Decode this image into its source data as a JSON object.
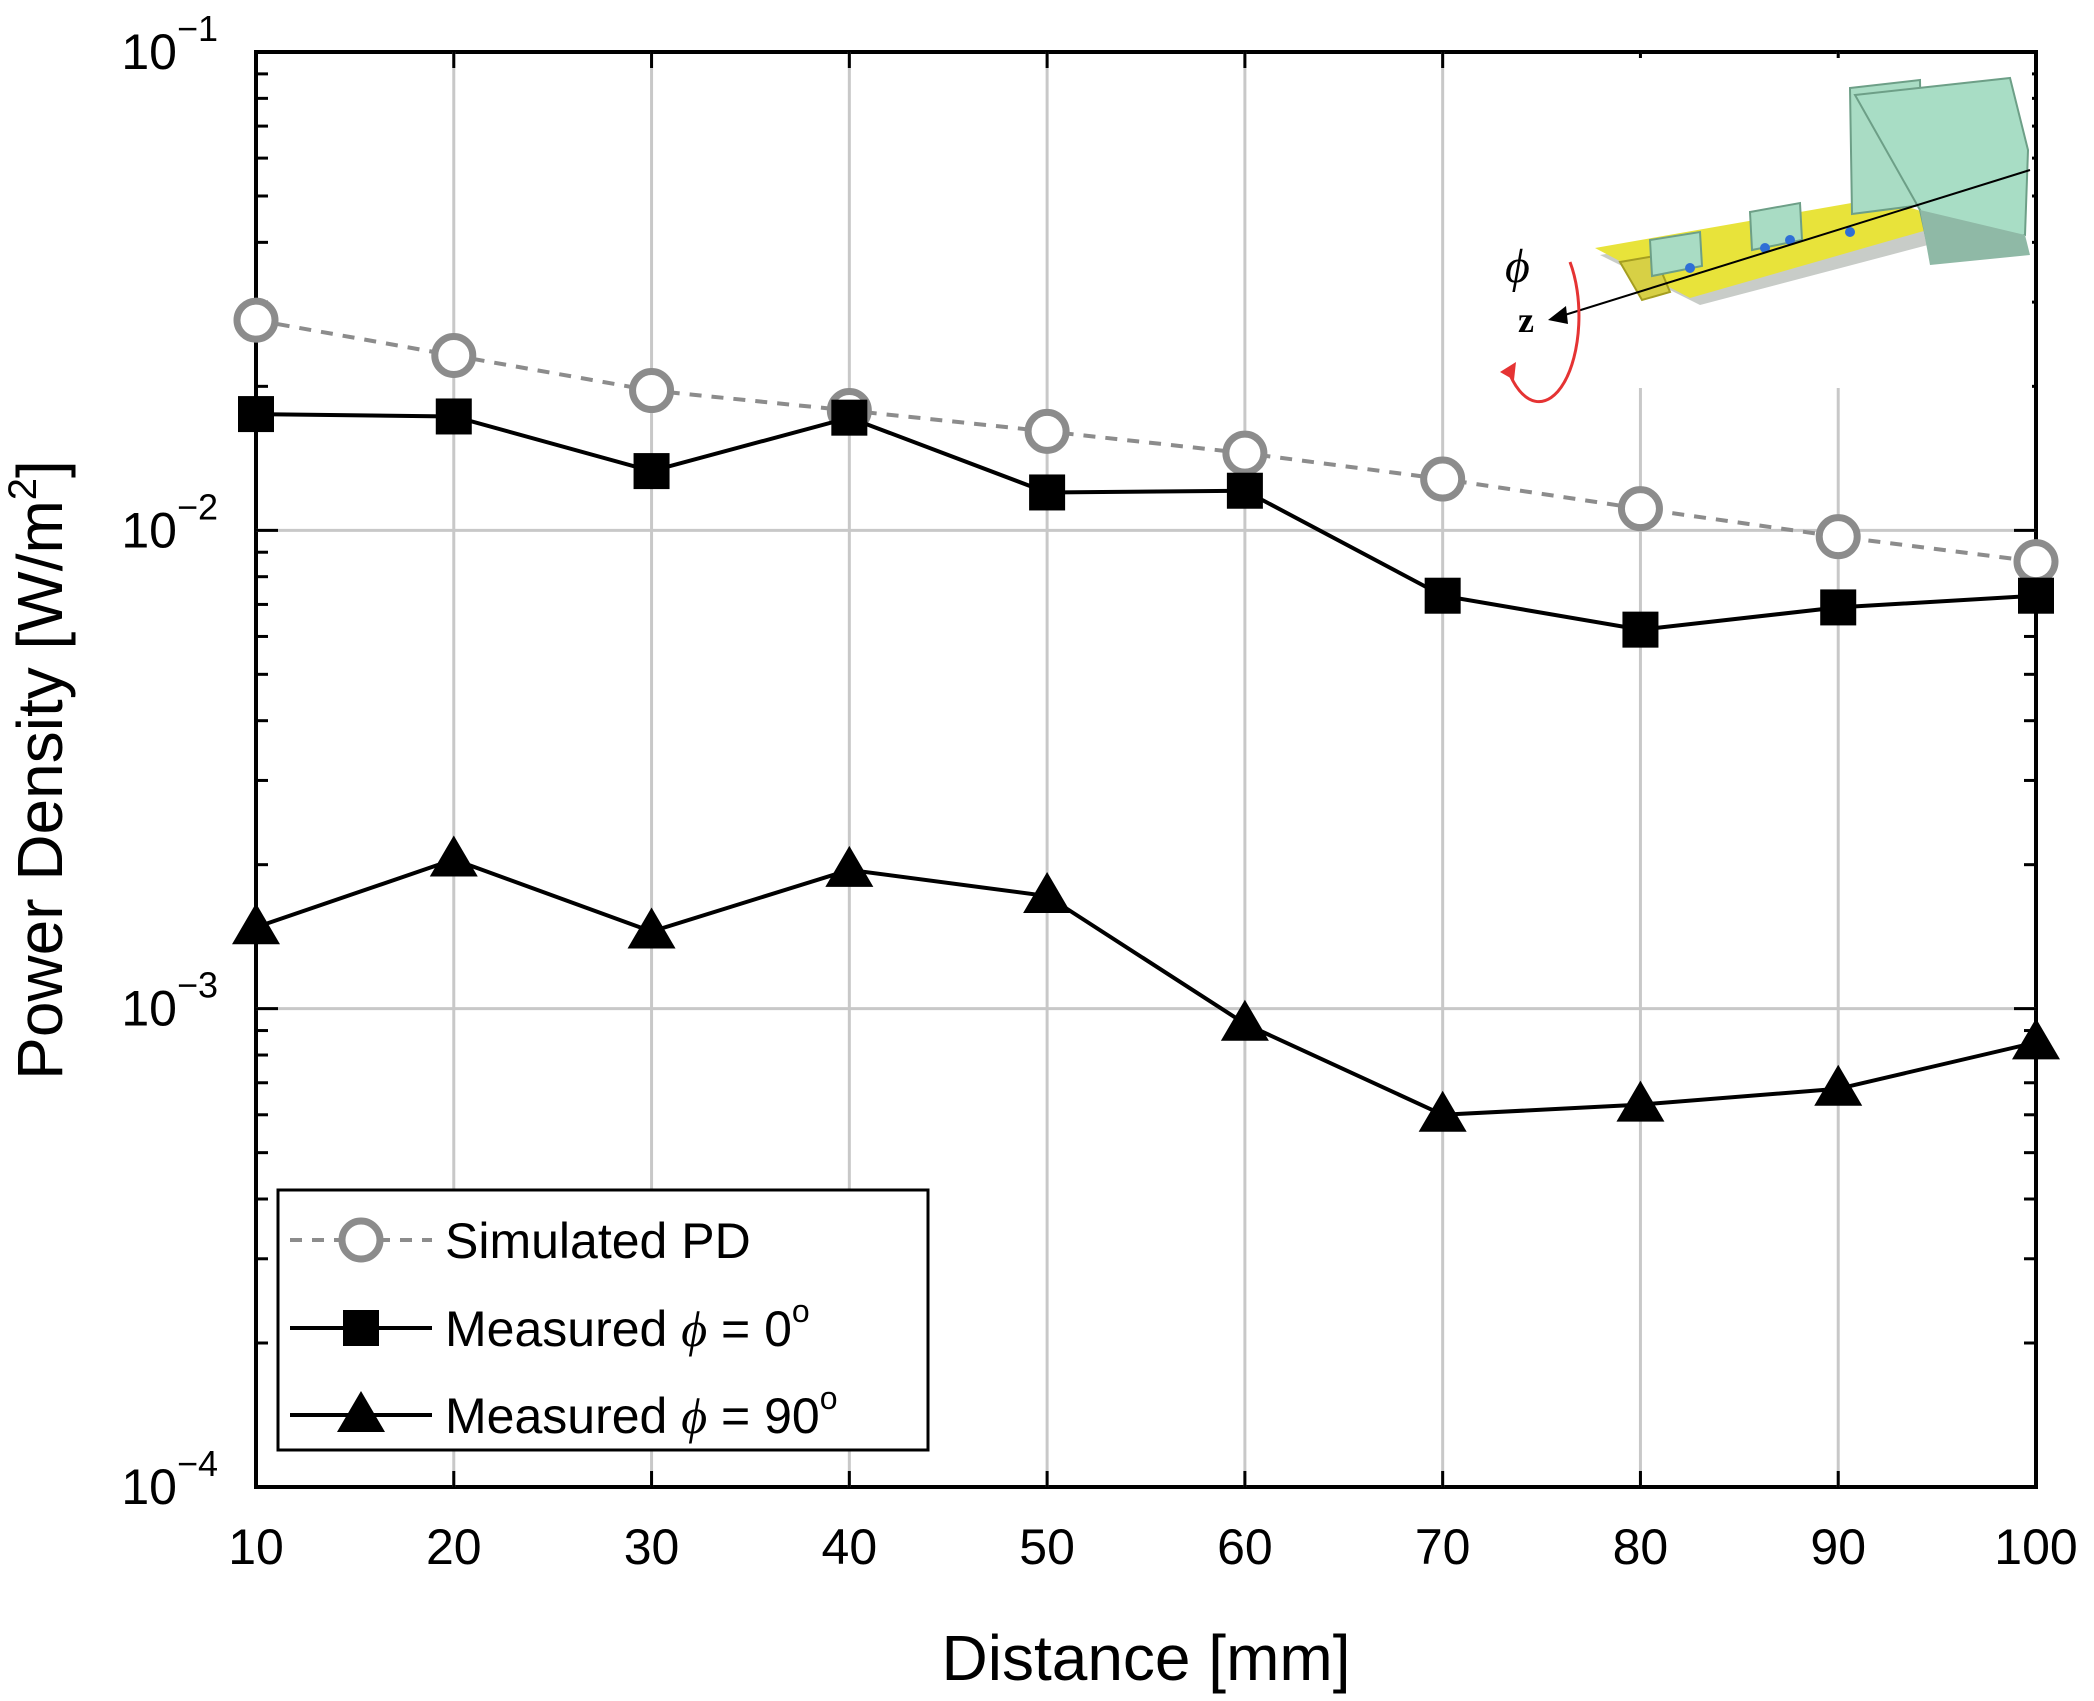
{
  "chart_data": {
    "type": "line",
    "title": "",
    "xlabel": "Distance [mm]",
    "ylabel": "Power Density [W/m²]",
    "ylabel_main": "Power Density [W/m",
    "ylabel_sup": "2",
    "ylabel_close": "]",
    "yscale": "log",
    "xlim": [
      10,
      100
    ],
    "ylim": [
      0.0001,
      0.1
    ],
    "grid": true,
    "legend_position": "bottom-left",
    "x": [
      10,
      20,
      30,
      40,
      50,
      60,
      70,
      80,
      90,
      100
    ],
    "x_tick_labels": [
      "10",
      "20",
      "30",
      "40",
      "50",
      "60",
      "70",
      "80",
      "90",
      "100"
    ],
    "y_ticks": [
      {
        "base": "10",
        "exp": "−4"
      },
      {
        "base": "10",
        "exp": "−3"
      },
      {
        "base": "10",
        "exp": "−2"
      },
      {
        "base": "10",
        "exp": "−1"
      }
    ],
    "series": [
      {
        "name": "Simulated PD",
        "style": "dashed-open-circle",
        "color": "#8c8c8c",
        "values": [
          0.0275,
          0.0232,
          0.0196,
          0.0178,
          0.0161,
          0.0145,
          0.0128,
          0.0111,
          0.0097,
          0.0086
        ]
      },
      {
        "name": "Measured φ = 0°",
        "style": "solid-filled-square",
        "color": "#000000",
        "values": [
          0.0175,
          0.0173,
          0.0133,
          0.0172,
          0.012,
          0.0121,
          0.0073,
          0.0062,
          0.0069,
          0.0073
        ]
      },
      {
        "name": "Measured φ = 90°",
        "style": "solid-filled-triangle",
        "color": "#000000",
        "values": [
          0.00148,
          0.00205,
          0.00145,
          0.00195,
          0.00172,
          0.00093,
          0.0006,
          0.00063,
          0.00068,
          0.00085
        ]
      }
    ],
    "legend": [
      {
        "prefix": "Simulated PD",
        "suffix": ""
      },
      {
        "prefix": "Measured ",
        "phi": "ϕ",
        "suffix": " = 0",
        "degree": "o"
      },
      {
        "prefix": "Measured ",
        "phi": "ϕ",
        "suffix": " = 90",
        "degree": "o"
      }
    ],
    "inset": {
      "phi_label": "ϕ",
      "axis_label": "z"
    }
  }
}
